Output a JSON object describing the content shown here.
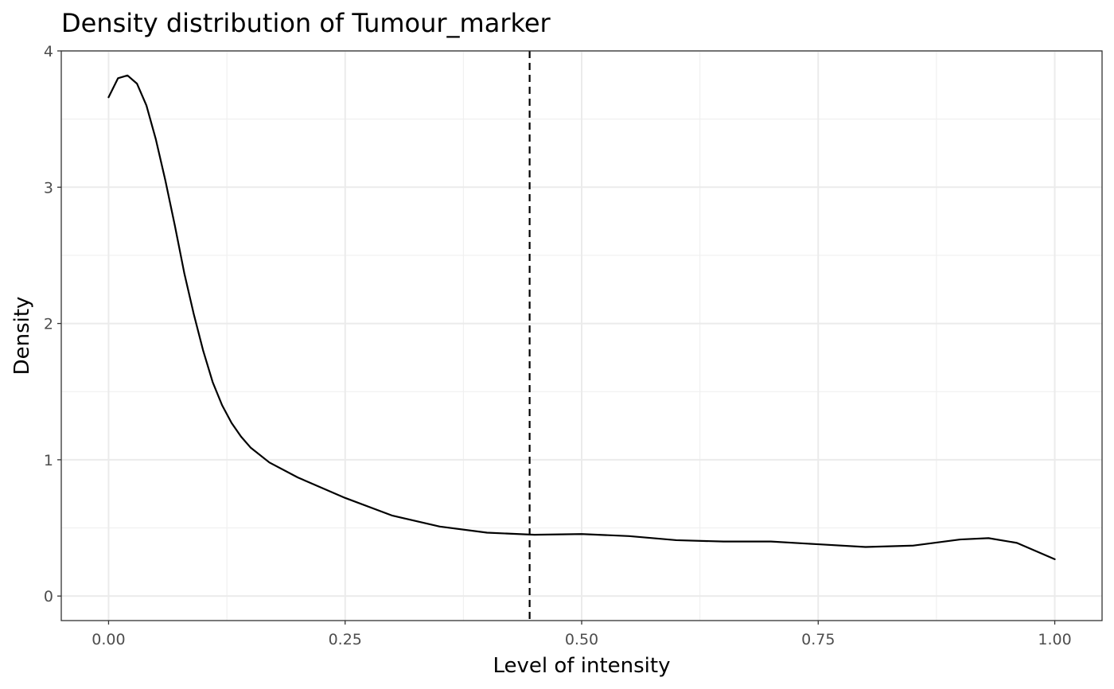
{
  "chart_data": {
    "type": "line",
    "title": "Density distribution of Tumour_marker",
    "xlabel": "Level of intensity",
    "ylabel": "Density",
    "xlim": [
      -0.05,
      1.05
    ],
    "ylim": [
      -0.18,
      4.0
    ],
    "x_ticks": [
      0.0,
      0.25,
      0.5,
      0.75,
      1.0
    ],
    "x_tick_labels": [
      "0.00",
      "0.25",
      "0.50",
      "0.75",
      "1.00"
    ],
    "y_ticks": [
      0,
      1,
      2,
      3,
      4
    ],
    "y_tick_labels": [
      "0",
      "1",
      "2",
      "3",
      "4"
    ],
    "grid": true,
    "series": [
      {
        "color": "#000000",
        "x": [
          0.0,
          0.01,
          0.02,
          0.03,
          0.04,
          0.05,
          0.06,
          0.07,
          0.08,
          0.09,
          0.1,
          0.11,
          0.12,
          0.13,
          0.14,
          0.15,
          0.17,
          0.2,
          0.25,
          0.3,
          0.35,
          0.4,
          0.45,
          0.5,
          0.55,
          0.6,
          0.65,
          0.7,
          0.75,
          0.8,
          0.85,
          0.9,
          0.93,
          0.96,
          1.0
        ],
        "y": [
          3.66,
          3.8,
          3.82,
          3.76,
          3.6,
          3.35,
          3.05,
          2.72,
          2.37,
          2.07,
          1.8,
          1.57,
          1.4,
          1.27,
          1.17,
          1.09,
          0.98,
          0.87,
          0.72,
          0.59,
          0.51,
          0.465,
          0.45,
          0.455,
          0.44,
          0.41,
          0.4,
          0.4,
          0.38,
          0.36,
          0.37,
          0.415,
          0.425,
          0.39,
          0.27
        ]
      }
    ],
    "vline": {
      "x": 0.445,
      "style": "dashed",
      "color": "#000000"
    }
  }
}
